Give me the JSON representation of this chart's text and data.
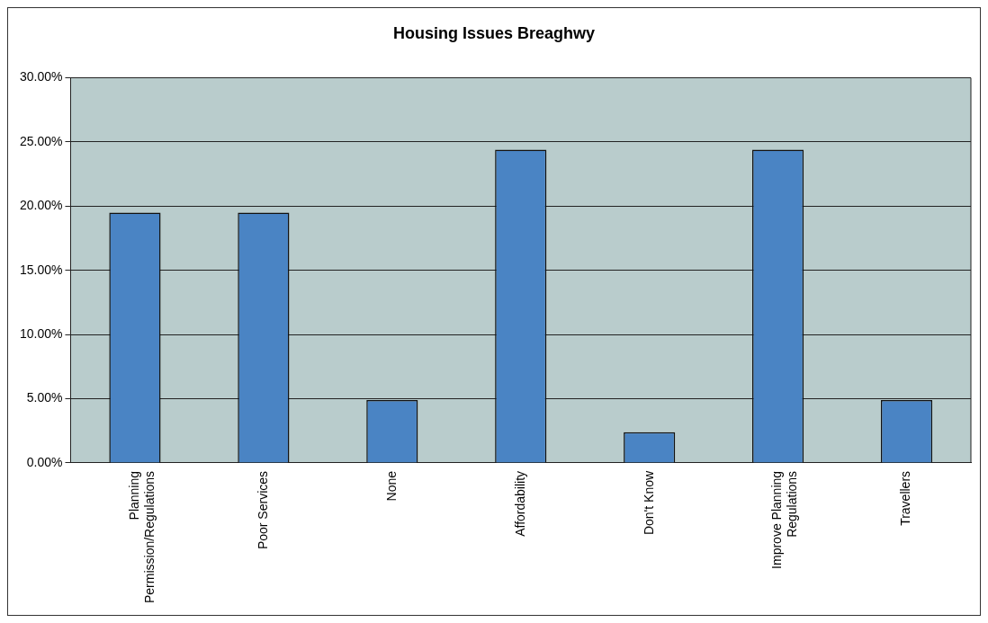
{
  "chart_data": {
    "type": "bar",
    "title": "Housing Issues Breaghwy",
    "categories": [
      "Planning Permission/Regulations",
      "Poor Services",
      "None",
      "Affordability",
      "Don't Know",
      "Improve Planning Regulations",
      "Travellers"
    ],
    "values": [
      19.5,
      19.5,
      4.9,
      24.4,
      2.4,
      24.4,
      4.9
    ],
    "color": "#4a84c4",
    "ylim": [
      0,
      30
    ],
    "yticks": [
      {
        "value": 0,
        "label": "0.00%"
      },
      {
        "value": 5,
        "label": "5.00%"
      },
      {
        "value": 10,
        "label": "10.00%"
      },
      {
        "value": 15,
        "label": "15.00%"
      },
      {
        "value": 20,
        "label": "20.00%"
      },
      {
        "value": 25,
        "label": "25.00%"
      },
      {
        "value": 30,
        "label": "30.00%"
      }
    ],
    "grid": "y",
    "legend": false
  }
}
